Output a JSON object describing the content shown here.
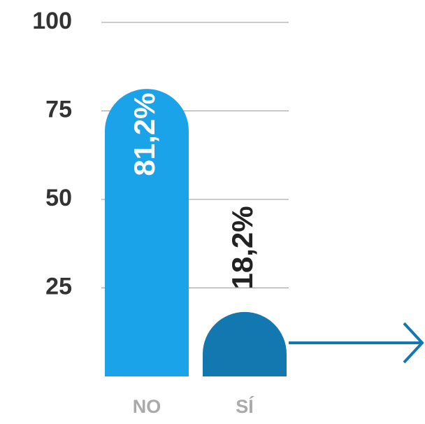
{
  "chart_data": {
    "type": "bar",
    "categories": [
      "NO",
      "SÍ"
    ],
    "values": [
      81.2,
      18.2
    ],
    "value_labels": [
      "81,2%",
      "18,2%"
    ],
    "colors": [
      "#1aa3e8",
      "#1478b0"
    ],
    "ylim": [
      0,
      100
    ],
    "yticks": [
      25,
      50,
      75,
      100
    ],
    "grid": true
  }
}
